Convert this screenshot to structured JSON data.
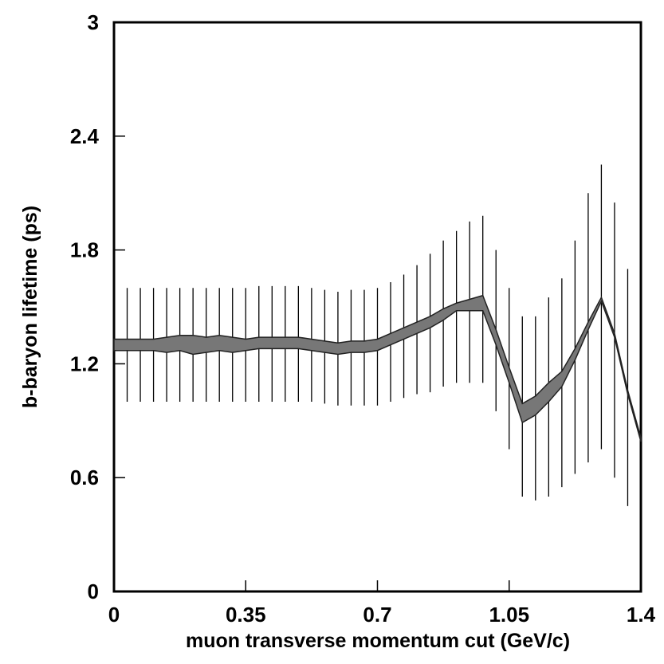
{
  "chart_data": {
    "type": "band-errorbar",
    "xlabel": "muon transverse momentum cut (GeV/c)",
    "ylabel": "b-baryon lifetime (ps)",
    "xlim": [
      0,
      1.4
    ],
    "ylim": [
      0,
      3
    ],
    "xticks": [
      0,
      0.35,
      0.7,
      1.05,
      1.4
    ],
    "yticks": [
      0,
      0.6,
      1.2,
      1.8,
      2.4,
      3
    ],
    "color": "#777777",
    "x": [
      0,
      0.035,
      0.07,
      0.105,
      0.14,
      0.175,
      0.21,
      0.245,
      0.28,
      0.315,
      0.35,
      0.385,
      0.42,
      0.455,
      0.49,
      0.525,
      0.56,
      0.595,
      0.63,
      0.665,
      0.7,
      0.735,
      0.77,
      0.805,
      0.84,
      0.875,
      0.91,
      0.945,
      0.98,
      1.015,
      1.05,
      1.085,
      1.12,
      1.155,
      1.19,
      1.225,
      1.26,
      1.295,
      1.33,
      1.365,
      1.4
    ],
    "band_upper": [
      1.33,
      1.33,
      1.33,
      1.33,
      1.34,
      1.35,
      1.35,
      1.34,
      1.35,
      1.34,
      1.33,
      1.34,
      1.34,
      1.34,
      1.34,
      1.33,
      1.32,
      1.31,
      1.32,
      1.32,
      1.33,
      1.36,
      1.39,
      1.42,
      1.45,
      1.49,
      1.52,
      1.54,
      1.56,
      1.38,
      1.18,
      0.99,
      1.03,
      1.1,
      1.16,
      1.28,
      1.42,
      1.55,
      1.36,
      1.06,
      0.81
    ],
    "band_lower": [
      1.27,
      1.27,
      1.27,
      1.27,
      1.26,
      1.27,
      1.25,
      1.26,
      1.27,
      1.26,
      1.27,
      1.28,
      1.28,
      1.28,
      1.28,
      1.27,
      1.26,
      1.25,
      1.26,
      1.26,
      1.27,
      1.3,
      1.33,
      1.36,
      1.39,
      1.43,
      1.48,
      1.48,
      1.48,
      1.3,
      1.1,
      0.89,
      0.93,
      1.0,
      1.08,
      1.22,
      1.38,
      1.53,
      1.34,
      1.04,
      0.79
    ],
    "err_low": [
      1.0,
      1.0,
      1.0,
      1.0,
      1.0,
      1.0,
      1.0,
      1.0,
      1.0,
      1.0,
      1.0,
      1.0,
      1.0,
      1.0,
      1.0,
      1.0,
      0.99,
      0.98,
      0.98,
      0.98,
      0.98,
      1.0,
      1.02,
      1.04,
      1.05,
      1.08,
      1.1,
      1.1,
      1.1,
      0.95,
      0.75,
      0.5,
      0.48,
      0.5,
      0.55,
      0.62,
      0.68,
      0.75,
      0.6,
      0.45,
      0.45
    ],
    "err_high": [
      1.6,
      1.6,
      1.6,
      1.6,
      1.6,
      1.6,
      1.6,
      1.6,
      1.6,
      1.6,
      1.6,
      1.61,
      1.61,
      1.61,
      1.61,
      1.6,
      1.59,
      1.58,
      1.59,
      1.59,
      1.6,
      1.63,
      1.67,
      1.72,
      1.78,
      1.85,
      1.9,
      1.95,
      1.98,
      1.8,
      1.6,
      1.45,
      1.45,
      1.55,
      1.65,
      1.85,
      2.1,
      2.25,
      2.05,
      1.7,
      1.35
    ]
  }
}
